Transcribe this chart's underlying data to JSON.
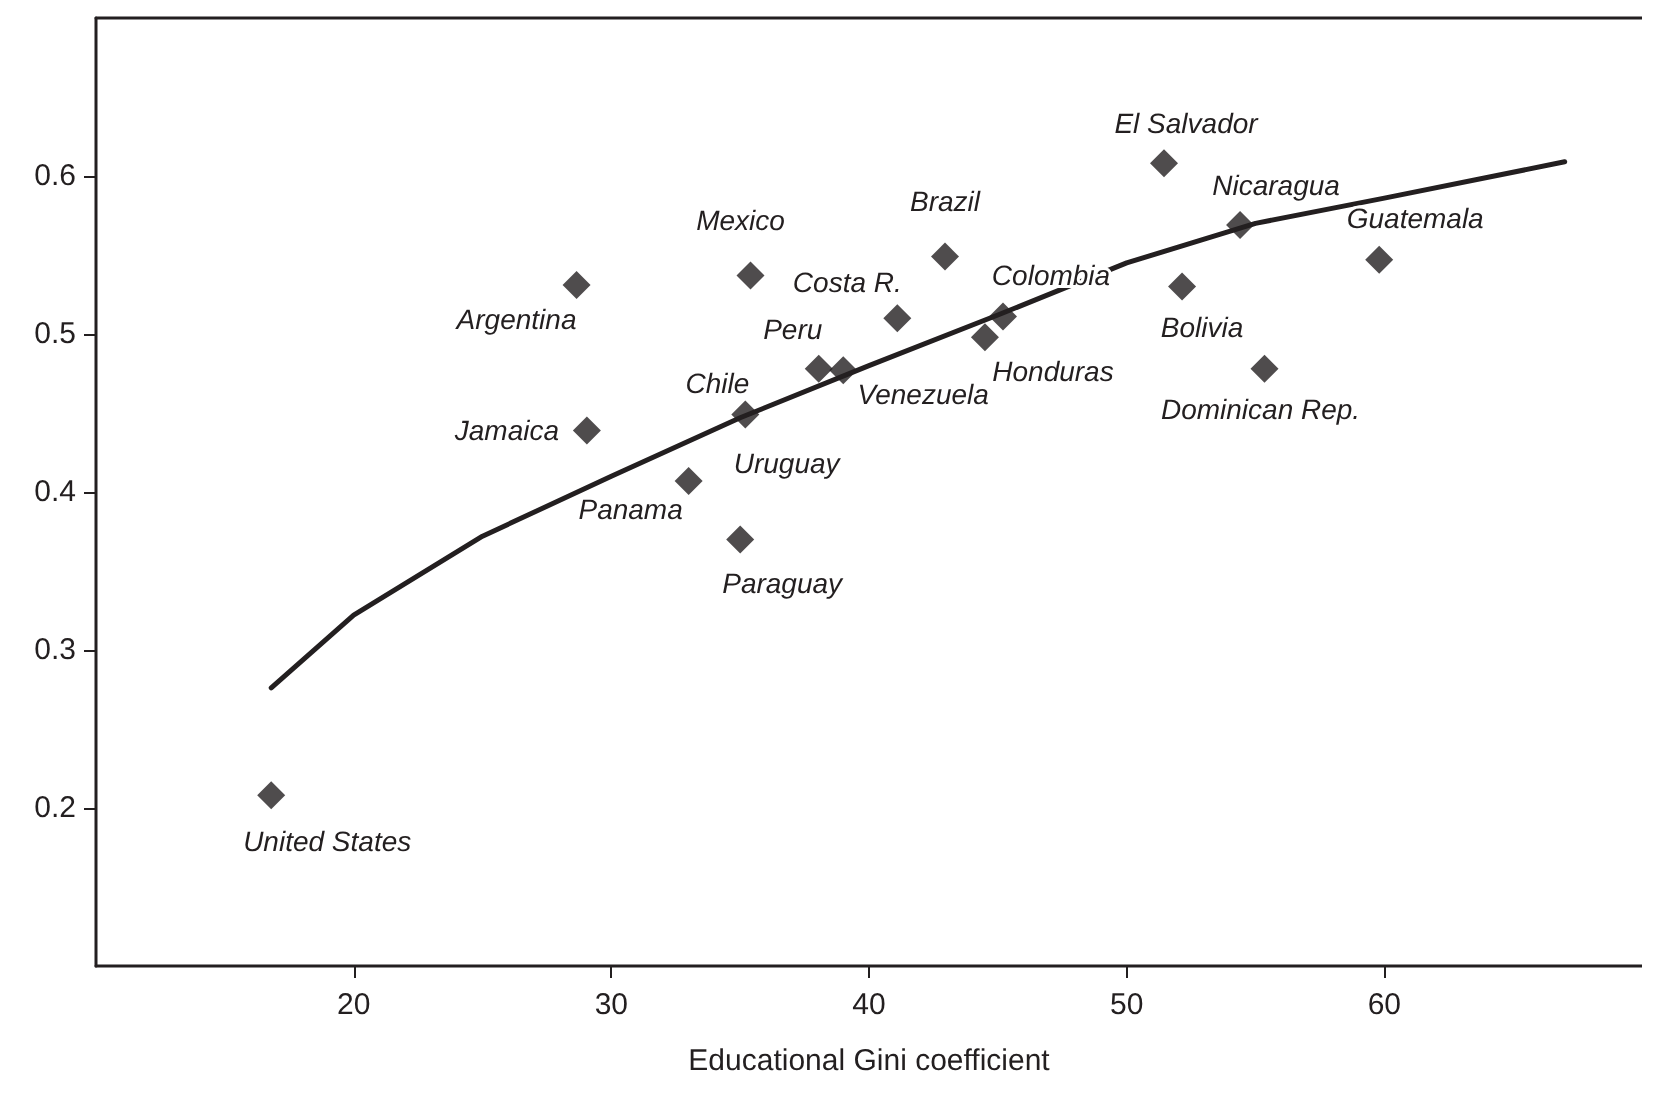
{
  "chart_data": {
    "type": "scatter",
    "xlabel": "Educational Gini coefficient",
    "xlim": [
      10,
      70
    ],
    "ylim": [
      0.1,
      0.7
    ],
    "xticks": [
      20,
      30,
      40,
      50,
      60
    ],
    "yticks": [
      0.2,
      0.3,
      0.4,
      0.5,
      0.6
    ],
    "grid": false,
    "marker": "diamond",
    "series": [
      {
        "color": "#231f20",
        "x": [
          16.8,
          28.65,
          35.4,
          29.05,
          35.2,
          33.0,
          35.0,
          38.05,
          39.0,
          41.1,
          42.95,
          44.5,
          45.2,
          51.45,
          52.15,
          54.4,
          55.35,
          59.8
        ],
        "values": [
          0.208,
          0.531,
          0.537,
          0.439,
          0.449,
          0.407,
          0.37,
          0.478,
          0.477,
          0.51,
          0.549,
          0.498,
          0.511,
          0.608,
          0.53,
          0.569,
          0.478,
          0.547
        ]
      },
      {
        "type": "line",
        "color": "#231f20",
        "marker": "none",
        "line_style": "solid",
        "x": [
          16.8,
          20,
          25,
          30,
          35,
          40,
          45,
          50,
          55,
          60,
          67
        ],
        "values": [
          0.276,
          0.322,
          0.372,
          0.41,
          0.447,
          0.48,
          0.512,
          0.545,
          0.57,
          0.586,
          0.609
        ]
      }
    ],
    "annotations": [
      {
        "text": "United States",
        "x": 16.8,
        "y": 0.208
      },
      {
        "text": "Argentina",
        "x": 28.65,
        "y": 0.531
      },
      {
        "text": "Mexico",
        "x": 35.4,
        "y": 0.537
      },
      {
        "text": "Jamaica",
        "x": 29.05,
        "y": 0.439
      },
      {
        "text": "Chile",
        "x": 35.2,
        "y": 0.449
      },
      {
        "text": "Uruguay",
        "x": 33.0,
        "y": 0.407
      },
      {
        "text": "Panama",
        "x": 33.0,
        "y": 0.407
      },
      {
        "text": "Paraguay",
        "x": 35.0,
        "y": 0.37
      },
      {
        "text": "Peru",
        "x": 38.05,
        "y": 0.478
      },
      {
        "text": "Costa R.",
        "x": 41.1,
        "y": 0.51
      },
      {
        "text": "Brazil",
        "x": 42.95,
        "y": 0.549
      },
      {
        "text": "Colombia",
        "x": 45.2,
        "y": 0.511
      },
      {
        "text": "Venezuela",
        "x": 39.0,
        "y": 0.477
      },
      {
        "text": "Honduras",
        "x": 44.5,
        "y": 0.498
      },
      {
        "text": "El Salvador",
        "x": 51.45,
        "y": 0.608
      },
      {
        "text": "Nicaragua",
        "x": 54.4,
        "y": 0.569
      },
      {
        "text": "Guatemala",
        "x": 59.8,
        "y": 0.547
      },
      {
        "text": "Bolivia",
        "x": 52.15,
        "y": 0.53
      },
      {
        "text": "Dominican Rep.",
        "x": 55.35,
        "y": 0.478
      }
    ]
  }
}
